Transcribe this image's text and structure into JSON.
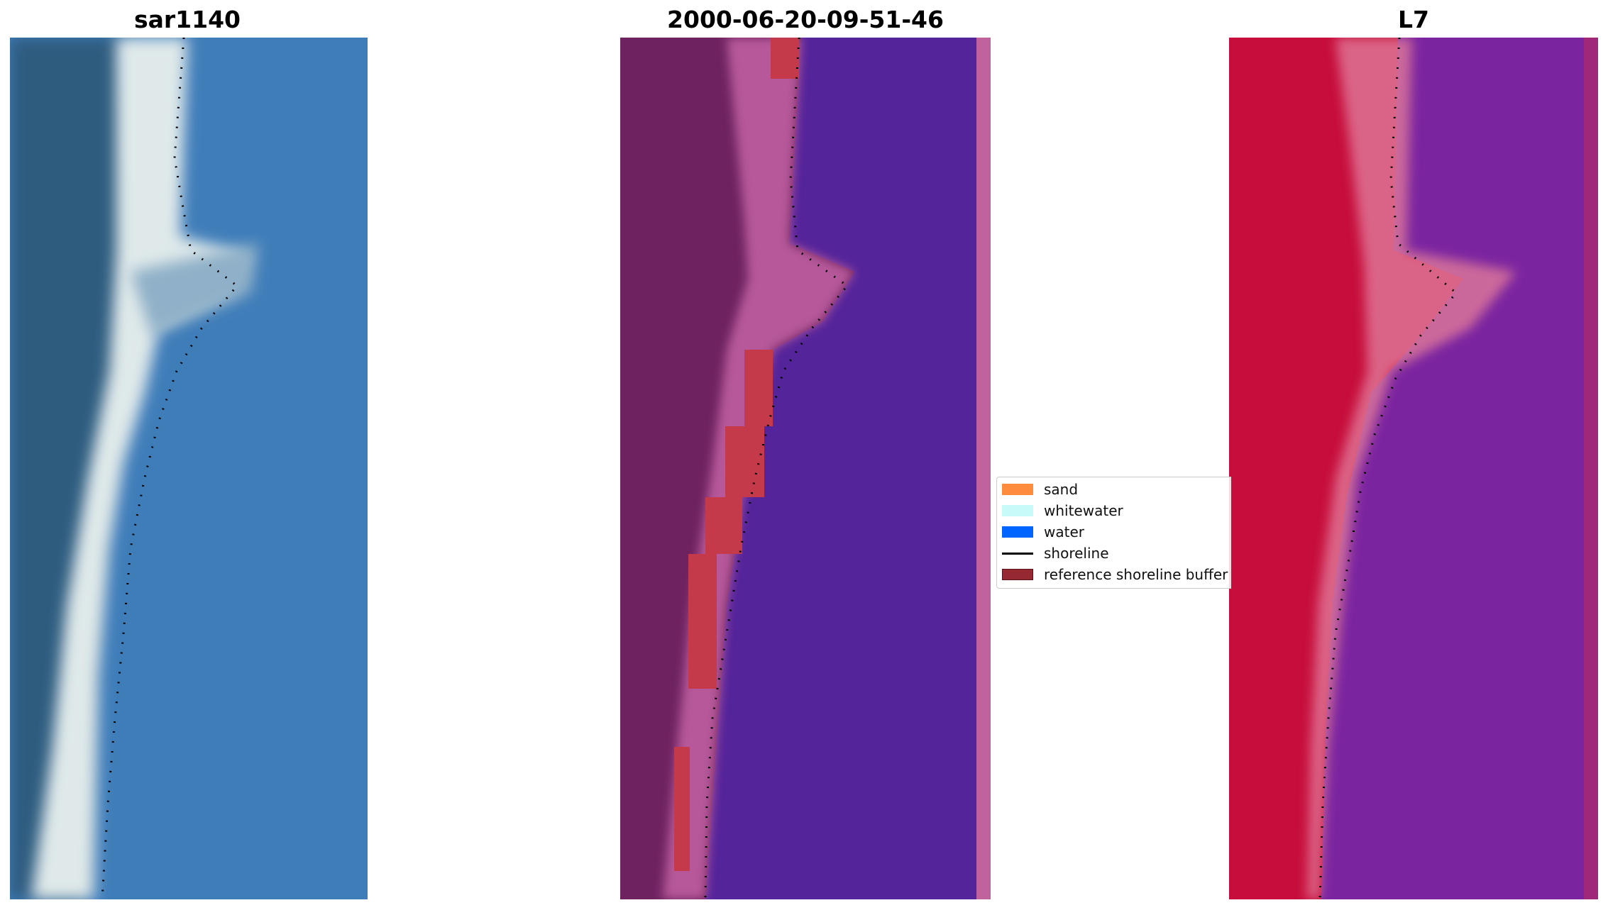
{
  "panels": {
    "rgb": {
      "title": "sar1140"
    },
    "classified": {
      "title": "2000-06-20-09-51-46"
    },
    "index": {
      "title": "L7"
    }
  },
  "legend": {
    "items": [
      {
        "label": "sand",
        "color": "#ff8c3c",
        "kind": "patch"
      },
      {
        "label": "whitewater",
        "color": "#c8fafa",
        "kind": "patch"
      },
      {
        "label": "water",
        "color": "#0064ff",
        "kind": "patch"
      },
      {
        "label": "shoreline",
        "color": "#000000",
        "kind": "line"
      },
      {
        "label": "reference shoreline buffer",
        "color": "#962832",
        "kind": "patch"
      }
    ]
  },
  "colors": {
    "rgb_water": "#3f7db9",
    "rgb_land": "#2e5c7f",
    "rgb_beach": "#e8f0ee",
    "classified_water": "#54249a",
    "classified_land": "#6e2260",
    "classified_sand_overlay": "#b6589a",
    "classified_buffer": "#c43a4a",
    "index_land": "#c60d3b",
    "index_water": "#7a24a0",
    "shoreline": "#000000"
  }
}
